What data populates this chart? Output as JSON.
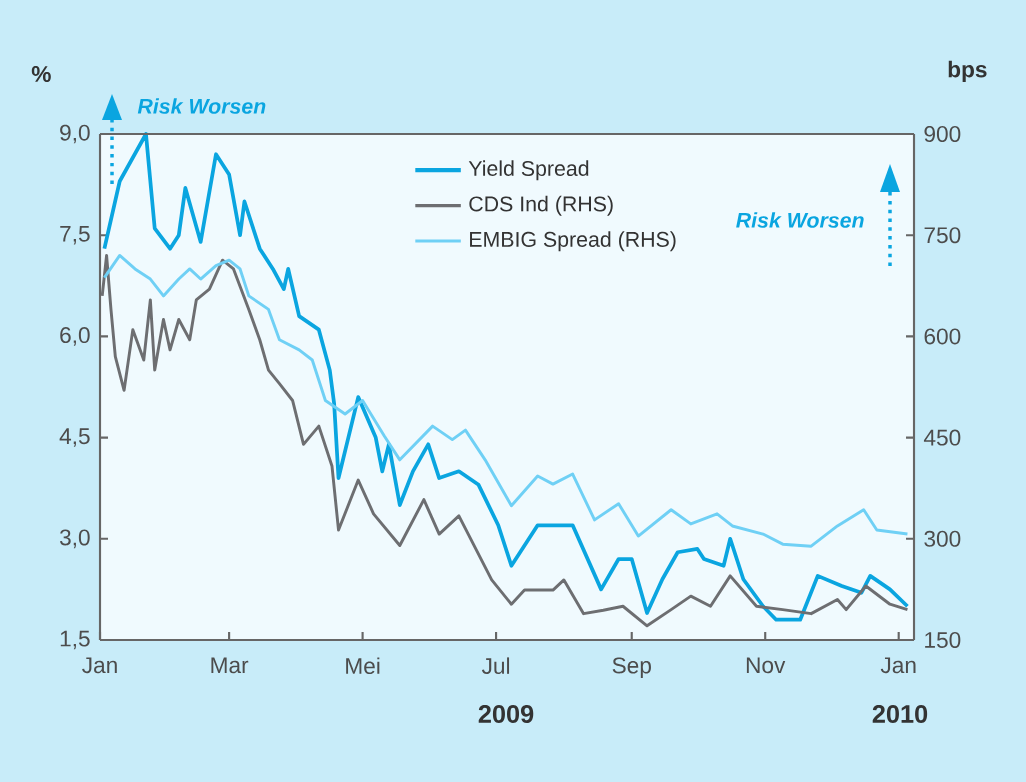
{
  "chart_data": {
    "type": "line",
    "ylabel": "%",
    "y2label": "bps",
    "xlim": [
      "2009-01-01",
      "2010-01-08"
    ],
    "xticks": [
      {
        "value": "2009-01-01",
        "label": "Jan"
      },
      {
        "value": "2009-03-01",
        "label": "Mar"
      },
      {
        "value": "2009-05-01",
        "label": "Mei"
      },
      {
        "value": "2009-07-01",
        "label": "Jul"
      },
      {
        "value": "2009-09-01",
        "label": "Sep"
      },
      {
        "value": "2009-11-01",
        "label": "Nov"
      },
      {
        "value": "2010-01-01",
        "label": "Jan"
      }
    ],
    "ylim": [
      1.5,
      9.0
    ],
    "yticks": [
      {
        "value": 1.5,
        "label": "1,5"
      },
      {
        "value": 3.0,
        "label": "3,0"
      },
      {
        "value": 4.5,
        "label": "4,5"
      },
      {
        "value": 6.0,
        "label": "6,0"
      },
      {
        "value": 7.5,
        "label": "7,5"
      },
      {
        "value": 9.0,
        "label": "9,0"
      }
    ],
    "y2lim": [
      150,
      900
    ],
    "y2ticks": [
      150,
      300,
      450,
      600,
      750,
      900
    ],
    "legend": "top",
    "grid": false,
    "annotations": [
      "Risk Worsen",
      "Risk Worsen",
      "2009",
      "2010"
    ],
    "series": [
      {
        "name": "Yield Spread",
        "color": "#0aa5e0",
        "x": [
          "2009-01-03",
          "2009-01-10",
          "2009-01-22",
          "2009-01-26",
          "2009-02-02",
          "2009-02-06",
          "2009-02-09",
          "2009-02-16",
          "2009-02-23",
          "2009-03-01",
          "2009-03-06",
          "2009-03-08",
          "2009-03-15",
          "2009-03-21",
          "2009-03-26",
          "2009-03-28",
          "2009-04-02",
          "2009-04-11",
          "2009-04-16",
          "2009-04-18",
          "2009-04-20",
          "2009-04-29",
          "2009-05-07",
          "2009-05-10",
          "2009-05-13",
          "2009-05-18",
          "2009-05-24",
          "2009-05-31",
          "2009-06-05",
          "2009-06-14",
          "2009-06-23",
          "2009-07-02",
          "2009-07-08",
          "2009-07-20",
          "2009-08-05",
          "2009-08-18",
          "2009-08-26",
          "2009-09-01",
          "2009-09-08",
          "2009-09-15",
          "2009-09-22",
          "2009-10-01",
          "2009-10-04",
          "2009-10-13",
          "2009-10-16",
          "2009-10-22",
          "2009-10-31",
          "2009-11-06",
          "2009-11-17",
          "2009-11-25",
          "2009-12-06",
          "2009-12-15",
          "2009-12-19",
          "2009-12-28",
          "2010-01-05"
        ],
        "values": [
          7.3,
          8.3,
          9.0,
          7.6,
          7.3,
          7.5,
          8.2,
          7.4,
          8.7,
          8.4,
          7.5,
          8.0,
          7.3,
          7.0,
          6.7,
          7.0,
          6.3,
          6.1,
          5.5,
          5.0,
          3.9,
          5.1,
          4.5,
          4.0,
          4.4,
          3.5,
          4.0,
          4.4,
          3.9,
          4.0,
          3.8,
          3.2,
          2.6,
          3.2,
          3.2,
          2.25,
          2.7,
          2.7,
          1.9,
          2.4,
          2.8,
          2.85,
          2.7,
          2.6,
          3.0,
          2.4,
          2.0,
          1.8,
          1.8,
          2.45,
          2.3,
          2.2,
          2.45,
          2.25,
          2.0
        ]
      },
      {
        "name": "CDS Ind (RHS)",
        "color": "#6d6e71",
        "axis": "y2",
        "x": [
          "2009-01-02",
          "2009-01-04",
          "2009-01-06",
          "2009-01-08",
          "2009-01-12",
          "2009-01-16",
          "2009-01-21",
          "2009-01-24",
          "2009-01-26",
          "2009-01-30",
          "2009-02-02",
          "2009-02-06",
          "2009-02-11",
          "2009-02-14",
          "2009-02-20",
          "2009-02-26",
          "2009-03-03",
          "2009-03-10",
          "2009-03-15",
          "2009-03-19",
          "2009-03-24",
          "2009-03-30",
          "2009-04-04",
          "2009-04-11",
          "2009-04-17",
          "2009-04-20",
          "2009-04-29",
          "2009-05-06",
          "2009-05-18",
          "2009-05-29",
          "2009-06-05",
          "2009-06-14",
          "2009-06-29",
          "2009-07-08",
          "2009-07-14",
          "2009-07-27",
          "2009-08-01",
          "2009-08-10",
          "2009-08-19",
          "2009-08-28",
          "2009-09-08",
          "2009-09-19",
          "2009-09-28",
          "2009-10-07",
          "2009-10-16",
          "2009-10-28",
          "2009-11-09",
          "2009-11-22",
          "2009-12-04",
          "2009-12-08",
          "2009-12-17",
          "2009-12-28",
          "2010-01-05"
        ],
        "values": [
          660,
          720,
          640,
          570,
          520,
          610,
          565,
          654,
          550,
          625,
          580,
          625,
          595,
          654,
          670,
          713,
          700,
          640,
          595,
          550,
          530,
          505,
          440,
          467,
          408,
          313,
          387,
          337,
          290,
          358,
          307,
          334,
          239,
          203,
          224,
          224,
          239,
          189,
          194,
          200,
          171,
          195,
          215,
          200,
          245,
          200,
          195,
          189,
          210,
          195,
          230,
          203,
          195
        ]
      },
      {
        "name": "EMBIG Spread (RHS)",
        "color": "#6fd0f5",
        "axis": "y2",
        "x": [
          "2009-01-03",
          "2009-01-10",
          "2009-01-17",
          "2009-01-24",
          "2009-01-30",
          "2009-02-06",
          "2009-02-11",
          "2009-02-16",
          "2009-02-23",
          "2009-03-01",
          "2009-03-06",
          "2009-03-10",
          "2009-03-19",
          "2009-03-24",
          "2009-04-02",
          "2009-04-08",
          "2009-04-14",
          "2009-04-23",
          "2009-05-01",
          "2009-05-11",
          "2009-05-18",
          "2009-06-02",
          "2009-06-11",
          "2009-06-17",
          "2009-06-26",
          "2009-07-08",
          "2009-07-20",
          "2009-07-27",
          "2009-08-05",
          "2009-08-15",
          "2009-08-26",
          "2009-09-04",
          "2009-09-19",
          "2009-09-28",
          "2009-10-10",
          "2009-10-17",
          "2009-10-31",
          "2009-11-09",
          "2009-11-22",
          "2009-12-04",
          "2009-12-16",
          "2009-12-22",
          "2010-01-05"
        ],
        "values": [
          687,
          720,
          700,
          685,
          660,
          685,
          700,
          685,
          705,
          713,
          700,
          660,
          640,
          595,
          580,
          565,
          505,
          485,
          505,
          452,
          417,
          467,
          447,
          461,
          417,
          349,
          393,
          381,
          396,
          328,
          352,
          304,
          343,
          322,
          337,
          319,
          307,
          292,
          289,
          319,
          343,
          313,
          307
        ]
      }
    ]
  }
}
